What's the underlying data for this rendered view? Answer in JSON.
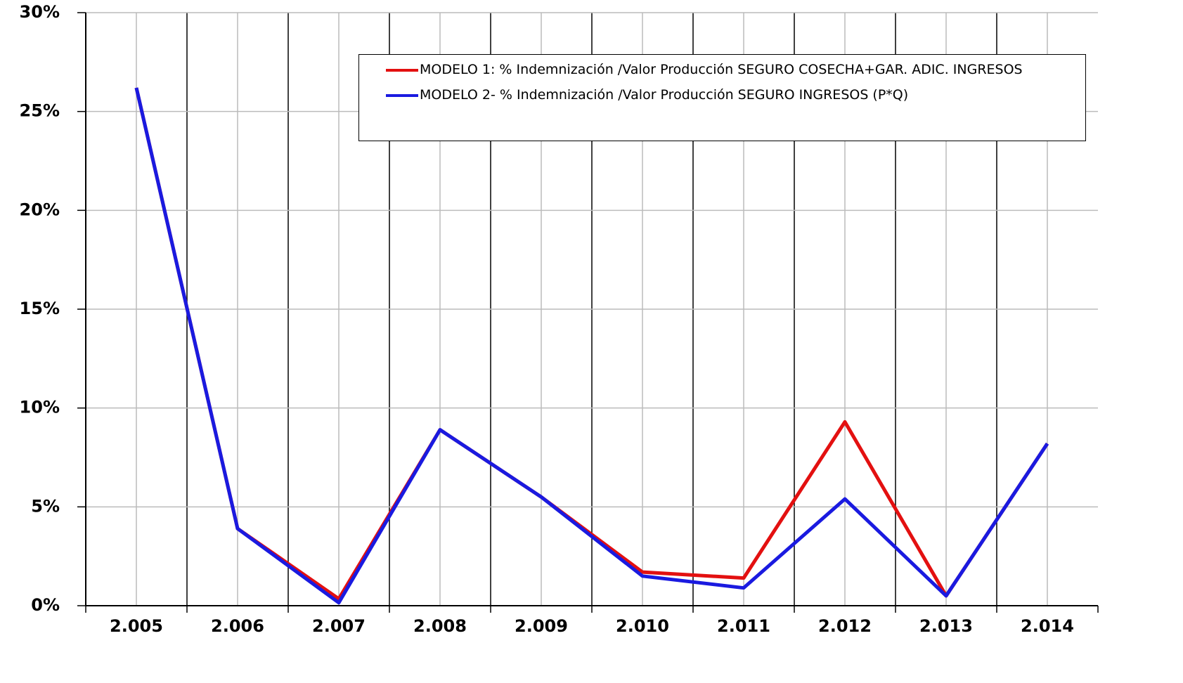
{
  "chart_data": {
    "type": "line",
    "categories": [
      "2.005",
      "2.006",
      "2.007",
      "2.008",
      "2.009",
      "2.010",
      "2.011",
      "2.012",
      "2.013",
      "2.014"
    ],
    "series": [
      {
        "name": "MODELO 1: % Indemnización  /Valor Producción SEGURO COSECHA+GAR.  ADIC. INGRESOS",
        "color": "#e31010",
        "values": [
          26.2,
          3.9,
          0.35,
          8.9,
          5.5,
          1.7,
          1.4,
          9.3,
          0.5,
          8.2
        ]
      },
      {
        "name": "MODELO 2- % Indemnización  /Valor Producción SEGURO INGRESOS (P*Q)",
        "color": "#1a1ae0",
        "values": [
          26.2,
          3.9,
          0.15,
          8.9,
          5.5,
          1.5,
          0.9,
          5.4,
          0.5,
          8.2
        ]
      }
    ],
    "ylim": [
      0,
      30
    ],
    "yticks": [
      {
        "value": 0,
        "label": "0%"
      },
      {
        "value": 5,
        "label": "5%"
      },
      {
        "value": 10,
        "label": "10%"
      },
      {
        "value": 15,
        "label": "15%"
      },
      {
        "value": 20,
        "label": "20%"
      },
      {
        "value": 25,
        "label": "25%"
      },
      {
        "value": 30,
        "label": "30%"
      }
    ],
    "grid": true
  }
}
